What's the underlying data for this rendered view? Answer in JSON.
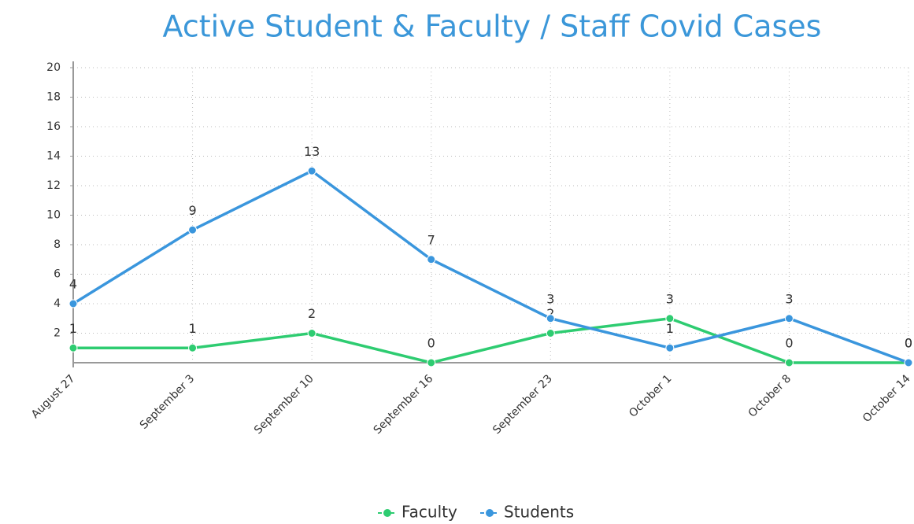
{
  "chart_data": {
    "type": "line",
    "title": "Active Student & Faculty / Staff Covid Cases",
    "categories": [
      "August 27",
      "September 3",
      "September 10",
      "September 16",
      "September 23",
      "October 1",
      "October 8",
      "October 14"
    ],
    "series": [
      {
        "name": "Faculty",
        "color": "#2ecc71",
        "values": [
          1,
          1,
          2,
          0,
          2,
          3,
          0,
          0
        ]
      },
      {
        "name": "Students",
        "color": "#3a96dd",
        "values": [
          4,
          9,
          13,
          7,
          3,
          1,
          3,
          0
        ]
      }
    ],
    "ylim": [
      0,
      20
    ],
    "yticks": [
      2,
      4,
      6,
      8,
      10,
      12,
      14,
      16,
      18,
      20
    ],
    "grid": true,
    "legend": "bottom"
  }
}
